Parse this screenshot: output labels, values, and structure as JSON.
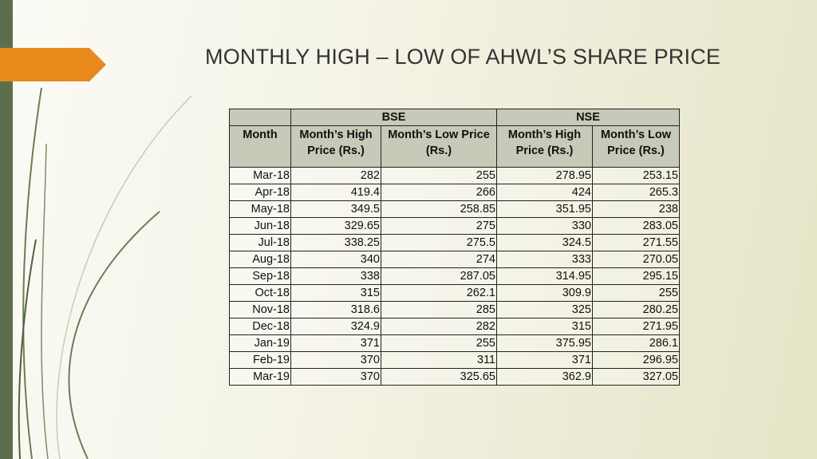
{
  "title": "MONTHLY HIGH – LOW OF AHWL’S SHARE PRICE",
  "table": {
    "groups": [
      "BSE",
      "NSE"
    ],
    "columns": [
      "Month",
      "Month’s High Price (Rs.)",
      "Month’s Low Price (Rs.)",
      "Month’s High Price (Rs.)",
      "Month’s Low Price (Rs.)"
    ],
    "rows": [
      [
        "Mar-18",
        282,
        255,
        278.95,
        253.15
      ],
      [
        "Apr-18",
        419.4,
        266,
        424,
        265.3
      ],
      [
        "May-18",
        349.5,
        258.85,
        351.95,
        238
      ],
      [
        "Jun-18",
        329.65,
        275,
        330,
        283.05
      ],
      [
        "Jul-18",
        338.25,
        275.5,
        324.5,
        271.55
      ],
      [
        "Aug-18",
        340,
        274,
        333,
        270.05
      ],
      [
        "Sep-18",
        338,
        287.05,
        314.95,
        295.15
      ],
      [
        "Oct-18",
        315,
        262.1,
        309.9,
        255
      ],
      [
        "Nov-18",
        318.6,
        285,
        325,
        280.25
      ],
      [
        "Dec-18",
        324.9,
        282,
        315,
        271.95
      ],
      [
        "Jan-19",
        371,
        255,
        375.95,
        286.1
      ],
      [
        "Feb-19",
        370,
        311,
        371,
        296.95
      ],
      [
        "Mar-19",
        370,
        325.65,
        362.9,
        327.05
      ]
    ]
  }
}
